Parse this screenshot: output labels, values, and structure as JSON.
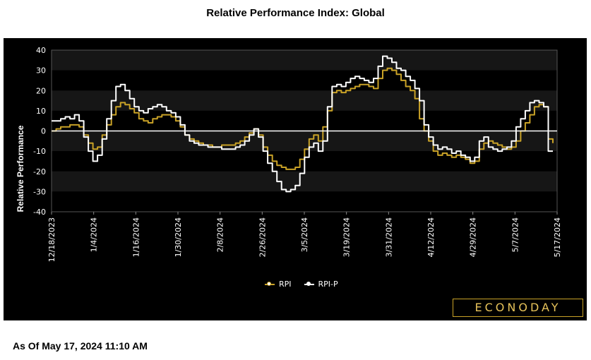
{
  "page": {
    "title": "Relative Performance Index: Global",
    "footer": "As Of May 17, 2024 11:10 AM",
    "brand": "ECONODAY"
  },
  "colors": {
    "background": "#000000",
    "band": "#161616",
    "rpi": "#c9a227",
    "rpi_p": "#ffffff",
    "zero_line": "#ffffff"
  },
  "chart_data": {
    "type": "line",
    "title": "Relative Performance Index: Global",
    "ylabel": "Relative Performance",
    "xlabel": "",
    "ylim": [
      -40,
      40
    ],
    "yticks": [
      40,
      30,
      20,
      10,
      0,
      -10,
      -20,
      -30,
      -40
    ],
    "xticks": [
      "12/18/2023",
      "1/4/2024",
      "1/16/2024",
      "1/30/2024",
      "2/8/2024",
      "2/26/2024",
      "3/5/2024",
      "3/19/2024",
      "3/31/2024",
      "4/12/2024",
      "4/29/2024",
      "5/7/2024",
      "5/17/2024"
    ],
    "grid": "alternating horizontal bands",
    "legend_position": "bottom",
    "series": [
      {
        "name": "RPI",
        "color": "#c9a227",
        "values": [
          0,
          1,
          2,
          2,
          3,
          3,
          2,
          -2,
          -6,
          -9,
          -8,
          -2,
          3,
          8,
          12,
          14,
          13,
          11,
          9,
          6,
          5,
          4,
          6,
          7,
          8,
          8,
          7,
          5,
          2,
          -2,
          -4,
          -5,
          -6,
          -7,
          -7,
          -8,
          -8,
          -7,
          -7,
          -7,
          -6,
          -5,
          -3,
          -1,
          1,
          -2,
          -8,
          -12,
          -15,
          -17,
          -18,
          -19,
          -19,
          -18,
          -14,
          -9,
          -4,
          -2,
          -5,
          2,
          10,
          19,
          20,
          19,
          20,
          21,
          22,
          23,
          23,
          22,
          21,
          26,
          30,
          31,
          30,
          28,
          25,
          22,
          20,
          16,
          6,
          0,
          -5,
          -10,
          -12,
          -11,
          -12,
          -13,
          -12,
          -13,
          -14,
          -16,
          -15,
          -9,
          -6,
          -5,
          -6,
          -7,
          -8,
          -9,
          -8,
          -5,
          0,
          4,
          8,
          12,
          13,
          12,
          -4,
          -6
        ]
      },
      {
        "name": "RPI-P",
        "color": "#ffffff",
        "values": [
          5,
          5,
          6,
          7,
          6,
          8,
          5,
          -3,
          -10,
          -15,
          -12,
          -4,
          6,
          15,
          22,
          23,
          20,
          16,
          12,
          10,
          9,
          11,
          12,
          13,
          12,
          10,
          9,
          7,
          3,
          -2,
          -5,
          -6,
          -7,
          -7,
          -8,
          -8,
          -8,
          -9,
          -9,
          -9,
          -8,
          -7,
          -5,
          -2,
          1,
          -3,
          -10,
          -16,
          -20,
          -25,
          -29,
          -30,
          -29,
          -27,
          -21,
          -13,
          -8,
          -6,
          -10,
          -5,
          12,
          22,
          23,
          22,
          24,
          26,
          27,
          26,
          25,
          24,
          26,
          32,
          37,
          36,
          34,
          31,
          30,
          27,
          25,
          21,
          15,
          3,
          -3,
          -7,
          -9,
          -8,
          -9,
          -11,
          -10,
          -12,
          -13,
          -15,
          -13,
          -5,
          -3,
          -8,
          -9,
          -10,
          -9,
          -8,
          -5,
          2,
          6,
          10,
          14,
          15,
          14,
          12,
          -10,
          -10
        ]
      }
    ]
  }
}
